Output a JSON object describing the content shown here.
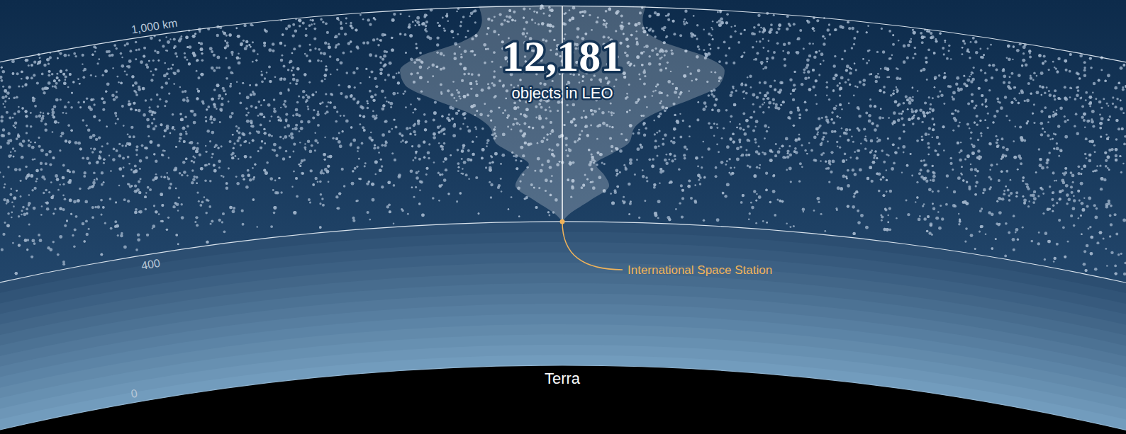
{
  "chart_data": {
    "type": "violin",
    "count": {
      "value": 12181,
      "label": "12,181"
    },
    "subtitle": "objects in LEO",
    "altitude_lim": [
      0,
      1000
    ],
    "altitude_ticks": [
      0,
      400,
      {
        "value": 1000,
        "label": "1,000 km"
      }
    ],
    "profile": {
      "altitudes": [
        400,
        420,
        460,
        500,
        530,
        560,
        590,
        620,
        660,
        700,
        740,
        780,
        820,
        860,
        900,
        930,
        960,
        1000
      ],
      "values": [
        0,
        0.04,
        0.17,
        0.28,
        0.25,
        0.2,
        0.3,
        0.4,
        0.43,
        0.55,
        0.77,
        0.94,
        0.97,
        0.85,
        0.6,
        0.5,
        0.48,
        0.5
      ]
    },
    "profile_lim": [
      0,
      1
    ],
    "annotations": [
      {
        "text": "International Space Station",
        "altitude": 400
      }
    ],
    "surface_label": "Terra"
  }
}
